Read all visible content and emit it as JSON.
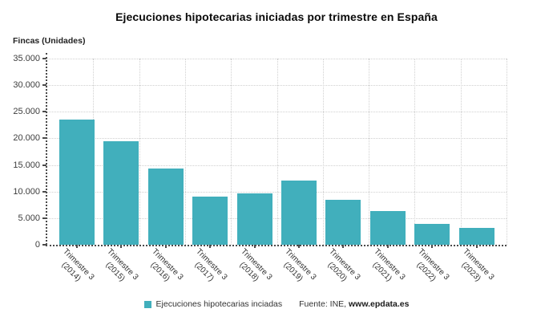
{
  "title": "Ejecuciones hipotecarias iniciadas por trimestre en España",
  "y_axis_title": "Fincas (Unidades)",
  "legend": {
    "label": "Ejecuciones hipotecarias inciadas",
    "swatch_color": "#41afbc"
  },
  "source": {
    "prefix": "Fuente: INE, ",
    "site": "www.epdata.es"
  },
  "colors": {
    "bar": "#41afbc",
    "grid": "#d0d0d0",
    "axis_line": "#4a4a4a",
    "axis_text": "#3d3d3d",
    "title_text": "#0a0a0a"
  },
  "chart_data": {
    "type": "bar",
    "title": "Ejecuciones hipotecarias iniciadas por trimestre en España",
    "xlabel": "",
    "ylabel": "Fincas (Unidades)",
    "categories": [
      "Trimestre 3 (2014)",
      "Trimestre 3 (2015)",
      "Trimestre 3 (2016)",
      "Trimestre 3 (2017)",
      "Trimestre 3 (2018)",
      "Trimestre 3 (2019)",
      "Trimestre 3 (2020)",
      "Trimestre 3 (2021)",
      "Trimestre 3 (2022)",
      "Trimestre 3 (2023)"
    ],
    "values": [
      23500,
      19500,
      14400,
      9000,
      9600,
      12000,
      8400,
      6400,
      3900,
      3100
    ],
    "ylim": [
      0,
      35000
    ],
    "ytick_step": 5000,
    "ytick_labels": [
      "0",
      "5.000",
      "10.000",
      "15.000",
      "20.000",
      "25.000",
      "30.000",
      "35.000"
    ],
    "grid": true,
    "legend_position": "bottom",
    "series_name": "Ejecuciones hipotecarias inciadas",
    "bar_color": "#41afbc"
  }
}
